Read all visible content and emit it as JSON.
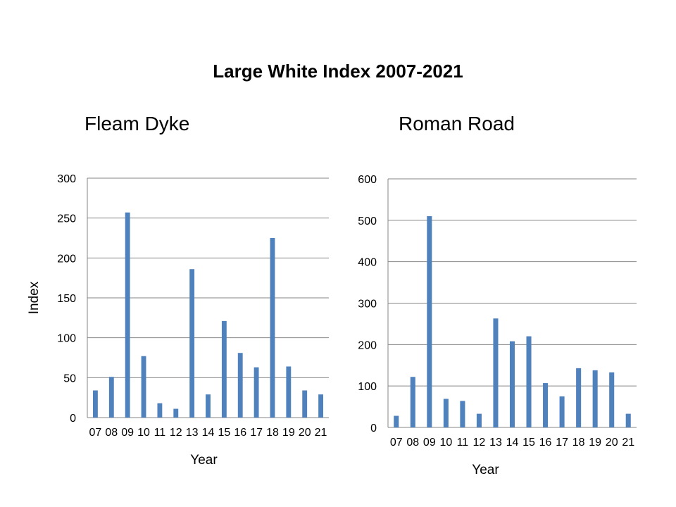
{
  "title": "Large White Index 2007-2021",
  "colors": {
    "bar": "#4F81BD",
    "grid": "#868686",
    "axis": "#868686"
  },
  "chart_data": [
    {
      "type": "bar",
      "title": "Fleam Dyke",
      "xlabel": "Year",
      "ylabel": "Index",
      "categories": [
        "07",
        "08",
        "09",
        "10",
        "11",
        "12",
        "13",
        "14",
        "15",
        "16",
        "17",
        "18",
        "19",
        "20",
        "21"
      ],
      "values": [
        34,
        51,
        257,
        77,
        18,
        11,
        186,
        29,
        121,
        81,
        63,
        225,
        64,
        34,
        29
      ],
      "ylim": [
        0,
        300
      ],
      "yticks": [
        0,
        50,
        100,
        150,
        200,
        250,
        300
      ],
      "grid": true
    },
    {
      "type": "bar",
      "title": "Roman Road",
      "xlabel": "Year",
      "ylabel": "",
      "categories": [
        "07",
        "08",
        "09",
        "10",
        "11",
        "12",
        "13",
        "14",
        "15",
        "16",
        "17",
        "18",
        "19",
        "20",
        "21"
      ],
      "values": [
        28,
        122,
        510,
        69,
        64,
        33,
        263,
        208,
        220,
        107,
        75,
        143,
        138,
        133,
        33
      ],
      "ylim": [
        0,
        600
      ],
      "yticks": [
        0,
        100,
        200,
        300,
        400,
        500,
        600
      ],
      "grid": true
    }
  ]
}
